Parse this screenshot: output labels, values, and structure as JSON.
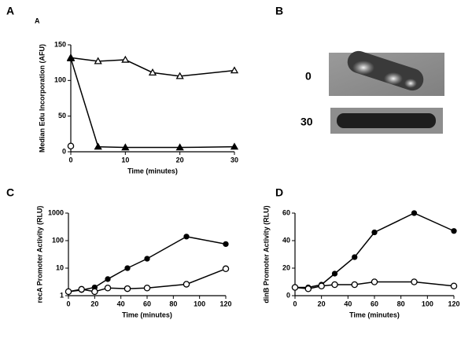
{
  "panel_labels": [
    "A",
    "B",
    "C",
    "D"
  ],
  "panel_b": {
    "labels": [
      "0",
      "30"
    ]
  },
  "chart_data": [
    {
      "type": "line",
      "title": "A",
      "xlabel": "Time (minutes)",
      "ylabel": "Median Edu Incorporation (AFU)",
      "xlim": [
        0,
        30
      ],
      "xticks": [
        0,
        10,
        20,
        30
      ],
      "ylim": [
        0,
        150
      ],
      "yticks": [
        0,
        50,
        100,
        150
      ],
      "log_y": false,
      "series": [
        {
          "x": [
            0,
            5,
            10,
            15,
            20,
            30
          ],
          "values": [
            132,
            127,
            129,
            111,
            106,
            114
          ],
          "color": "#000000",
          "marker": "triangle",
          "filled": false
        },
        {
          "x": [
            0,
            5,
            10,
            20,
            30
          ],
          "values": [
            131,
            7,
            6,
            6,
            7
          ],
          "color": "#000000",
          "marker": "triangle",
          "filled": true
        },
        {
          "x": [
            0
          ],
          "values": [
            8
          ],
          "color": "#000000",
          "marker": "circle",
          "filled": false
        }
      ]
    },
    {
      "type": "line",
      "xlabel": "Time (minutes)",
      "ylabel": "recA Promoter Activity (RLU)",
      "xlim": [
        0,
        120
      ],
      "xticks": [
        0,
        20,
        40,
        60,
        80,
        100,
        120
      ],
      "ylim": [
        1,
        1000
      ],
      "yticks": [
        1,
        10,
        100,
        1000
      ],
      "log_y": true,
      "x": [
        0,
        10,
        20,
        30,
        45,
        60,
        90,
        120
      ],
      "series": [
        {
          "values": [
            1.4,
            1.6,
            2,
            4,
            10,
            22,
            140,
            75
          ],
          "color": "#000000",
          "marker": "circle",
          "filled": true
        },
        {
          "values": [
            1.4,
            1.7,
            1.4,
            1.9,
            1.8,
            1.9,
            2.6,
            9.5
          ],
          "color": "#000000",
          "marker": "circle",
          "filled": false
        }
      ]
    },
    {
      "type": "line",
      "xlabel": "Time (minutes)",
      "ylabel": "dinB Promoter Activity (RLU)",
      "xlim": [
        0,
        120
      ],
      "xticks": [
        0,
        20,
        40,
        60,
        80,
        100,
        120
      ],
      "ylim": [
        0,
        60
      ],
      "yticks": [
        0,
        20,
        40,
        60
      ],
      "log_y": false,
      "x": [
        0,
        10,
        20,
        30,
        45,
        60,
        90,
        120
      ],
      "series": [
        {
          "values": [
            6,
            6,
            8,
            16,
            28,
            46,
            60,
            47
          ],
          "color": "#000000",
          "marker": "circle",
          "filled": true
        },
        {
          "values": [
            6,
            5,
            7,
            8,
            8,
            10,
            10,
            7
          ],
          "color": "#000000",
          "marker": "circle",
          "filled": false
        }
      ]
    }
  ]
}
